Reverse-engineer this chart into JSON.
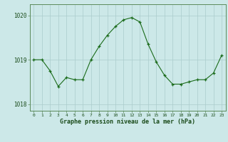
{
  "x": [
    0,
    1,
    2,
    3,
    4,
    5,
    6,
    7,
    8,
    9,
    10,
    11,
    12,
    13,
    14,
    15,
    16,
    17,
    18,
    19,
    20,
    21,
    22,
    23
  ],
  "y": [
    1019.0,
    1019.0,
    1018.75,
    1018.4,
    1018.6,
    1018.55,
    1018.55,
    1019.0,
    1019.3,
    1019.55,
    1019.75,
    1019.9,
    1019.95,
    1019.85,
    1019.35,
    1018.95,
    1018.65,
    1018.45,
    1018.45,
    1018.5,
    1018.55,
    1018.55,
    1018.7,
    1019.1
  ],
  "line_color": "#1a6b1a",
  "marker_color": "#1a6b1a",
  "bg_color": "#cce8e8",
  "grid_color": "#aacccc",
  "xlabel": "Graphe pression niveau de la mer (hPa)",
  "yticks": [
    1018,
    1019,
    1020
  ],
  "ylim": [
    1017.85,
    1020.25
  ],
  "xlim": [
    -0.5,
    23.5
  ],
  "xlabel_color": "#1a4b1a",
  "tick_color": "#1a4b1a",
  "axis_color": "#5a8a5a",
  "xlabel_fontsize": 6.0,
  "ytick_fontsize": 5.5,
  "xtick_fontsize": 4.5
}
